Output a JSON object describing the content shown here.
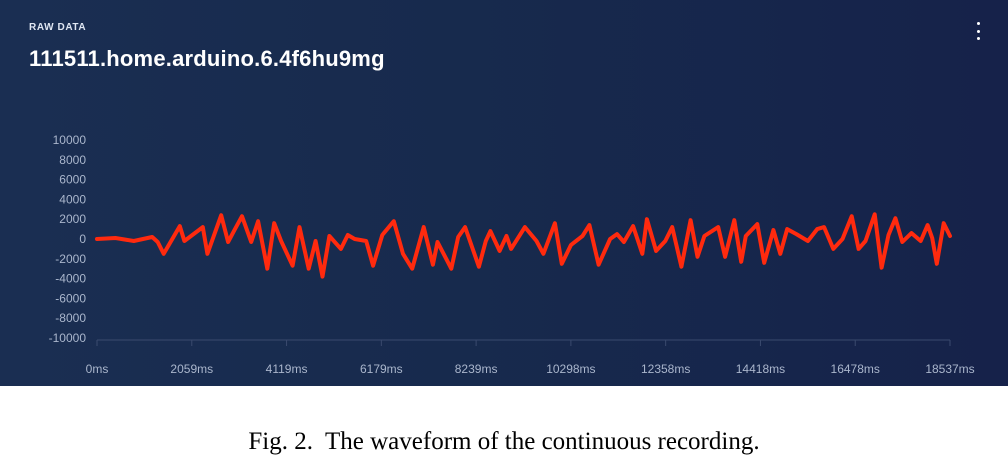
{
  "panel": {
    "label": "RAW DATA",
    "title": "111511.home.arduino.6.4f6hu9mg"
  },
  "menu_icon": "vertical-dots-icon",
  "colors": {
    "panel_background": "#172a4d",
    "series": "#ff2a0e",
    "tick_text": "#aab6cc",
    "axis": "#3a4a6e"
  },
  "caption": {
    "label": "Fig. 2.",
    "text": "The waveform of the continuous recording."
  },
  "chart_data": {
    "type": "line",
    "title": "",
    "xlabel": "",
    "ylabel": "",
    "x_unit": "ms",
    "ylim": [
      -10000,
      10000
    ],
    "xlim": [
      0,
      18537
    ],
    "y_ticks": [
      "10000",
      "8000",
      "6000",
      "4000",
      "2000",
      "0",
      "-2000",
      "-4000",
      "-6000",
      "-8000",
      "-10000"
    ],
    "x_ticks": [
      "0ms",
      "2059ms",
      "4119ms",
      "6179ms",
      "8239ms",
      "10298ms",
      "12358ms",
      "14418ms",
      "16478ms",
      "18537ms"
    ],
    "grid": false,
    "legend": "none",
    "series": [
      {
        "x": [
          0,
          400,
          800,
          1200,
          1320,
          1450,
          1800,
          1900,
          2300,
          2400,
          2700,
          2850,
          3000,
          3150,
          3350,
          3500,
          3700,
          3850,
          4000,
          4250,
          4400,
          4600,
          4750,
          4900,
          5050,
          5300,
          5450,
          5600,
          5850,
          6000,
          6200,
          6450,
          6650,
          6850,
          7100,
          7300,
          7400,
          7700,
          7850,
          8000,
          8300,
          8450,
          8550,
          8750,
          8900,
          9000,
          9300,
          9550,
          9700,
          9950,
          10100,
          10300,
          10550,
          10700,
          10900,
          11150,
          11300,
          11450,
          11650,
          11850,
          11950,
          12150,
          12350,
          12500,
          12700,
          12900,
          13050,
          13200,
          13500,
          13650,
          13850,
          14000,
          14100,
          14350,
          14500,
          14700,
          14850,
          15000,
          15200,
          15450,
          15650,
          15800,
          16000,
          16200,
          16400,
          16550,
          16700,
          16900,
          17050,
          17200,
          17350,
          17500,
          17700,
          17900,
          18050,
          18150,
          18250,
          18400,
          18537
        ],
        "y": [
          0,
          100,
          -200,
          200,
          -300,
          -1500,
          1300,
          -200,
          1200,
          -1500,
          2400,
          -300,
          1000,
          2300,
          -300,
          1800,
          -3000,
          1600,
          -200,
          -2700,
          1200,
          -3000,
          -200,
          -3800,
          300,
          -1000,
          400,
          0,
          -200,
          -2700,
          400,
          1800,
          -1500,
          -3000,
          1200,
          -2600,
          -300,
          -3000,
          200,
          1200,
          -2800,
          -200,
          800,
          -1200,
          300,
          -1000,
          1200,
          -200,
          -1500,
          1600,
          -2500,
          -600,
          300,
          1400,
          -2600,
          0,
          500,
          -300,
          1300,
          -1500,
          2000,
          -1200,
          -200,
          1200,
          -2800,
          1900,
          -1800,
          300,
          1200,
          -1800,
          1900,
          -2300,
          300,
          1500,
          -2400,
          900,
          -1500,
          1000,
          500,
          -200,
          1000,
          1200,
          -1000,
          0,
          2300,
          -1000,
          -200,
          2500,
          -2900,
          400,
          2100,
          -300,
          600,
          -200,
          1400,
          100,
          -2500,
          1600,
          300
        ]
      }
    ]
  }
}
